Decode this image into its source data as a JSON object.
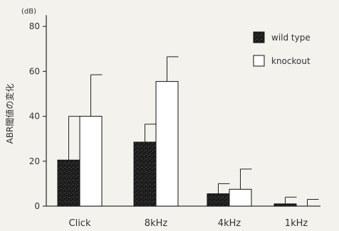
{
  "chart_data": {
    "type": "bar",
    "title": "",
    "xlabel": "",
    "ylabel": "ABR閾値の変化",
    "y_unit": "(dB)",
    "ylim": [
      0,
      85
    ],
    "yticks": [
      0,
      20,
      40,
      60,
      80
    ],
    "categories": [
      "Click",
      "8kHz",
      "4kHz",
      "1kHz"
    ],
    "series": [
      {
        "name": "wild type",
        "values": [
          20.5,
          28.5,
          5.5,
          1.0
        ],
        "errors": [
          19.5,
          8.0,
          4.5,
          3.0
        ],
        "fill": "#1f1f1f"
      },
      {
        "name": "knockout",
        "values": [
          40.0,
          55.5,
          7.5,
          0.0
        ],
        "errors": [
          18.5,
          11.0,
          9.0,
          3.0
        ],
        "fill": "#ffffff"
      }
    ],
    "legend_position": "top-right",
    "grid": false
  }
}
